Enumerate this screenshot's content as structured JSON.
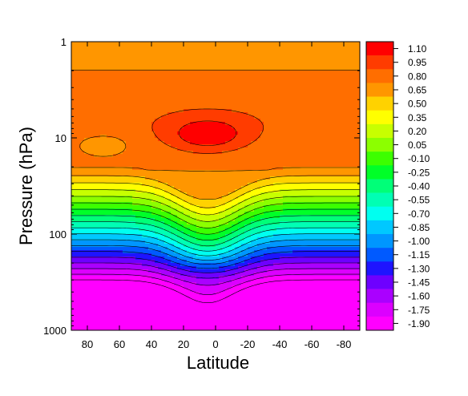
{
  "chart_data": {
    "type": "contour",
    "title": "",
    "xlabel": "Latitude",
    "ylabel": "Pressure (hPa)",
    "x_axis": {
      "range": [
        90,
        -90
      ],
      "ticks": [
        80,
        60,
        40,
        20,
        0,
        -20,
        -40,
        -60,
        -80
      ],
      "tick_labels": [
        "80",
        "60",
        "40",
        "20",
        "0",
        "-20",
        "-40",
        "-60",
        "-80"
      ]
    },
    "y_axis": {
      "scale": "log",
      "range": [
        1000,
        1
      ],
      "ticks": [
        1,
        10,
        100,
        1000
      ],
      "tick_labels": [
        "1",
        "10",
        "100",
        "1000"
      ]
    },
    "colorbar": {
      "levels": [
        "1.10",
        "0.95",
        "0.80",
        "0.65",
        "0.50",
        "0.35",
        "0.20",
        "0.05",
        "-0.10",
        "-0.25",
        "-0.40",
        "-0.55",
        "-0.70",
        "-0.85",
        "-1.00",
        "-1.15",
        "-1.30",
        "-1.45",
        "-1.60",
        "-1.75",
        "-1.90"
      ],
      "colors": [
        "#ff0000",
        "#ff3c00",
        "#ff6e00",
        "#ff9600",
        "#ffd200",
        "#ffff00",
        "#c8ff00",
        "#8cff00",
        "#3cff00",
        "#00ff28",
        "#00ff78",
        "#00ffb4",
        "#00fff0",
        "#00c8ff",
        "#0096ff",
        "#005aff",
        "#1e14ff",
        "#6e00ff",
        "#aa00ff",
        "#dc00ff",
        "#ff00ff"
      ]
    },
    "grid": false,
    "legend": "colorbar-right"
  }
}
